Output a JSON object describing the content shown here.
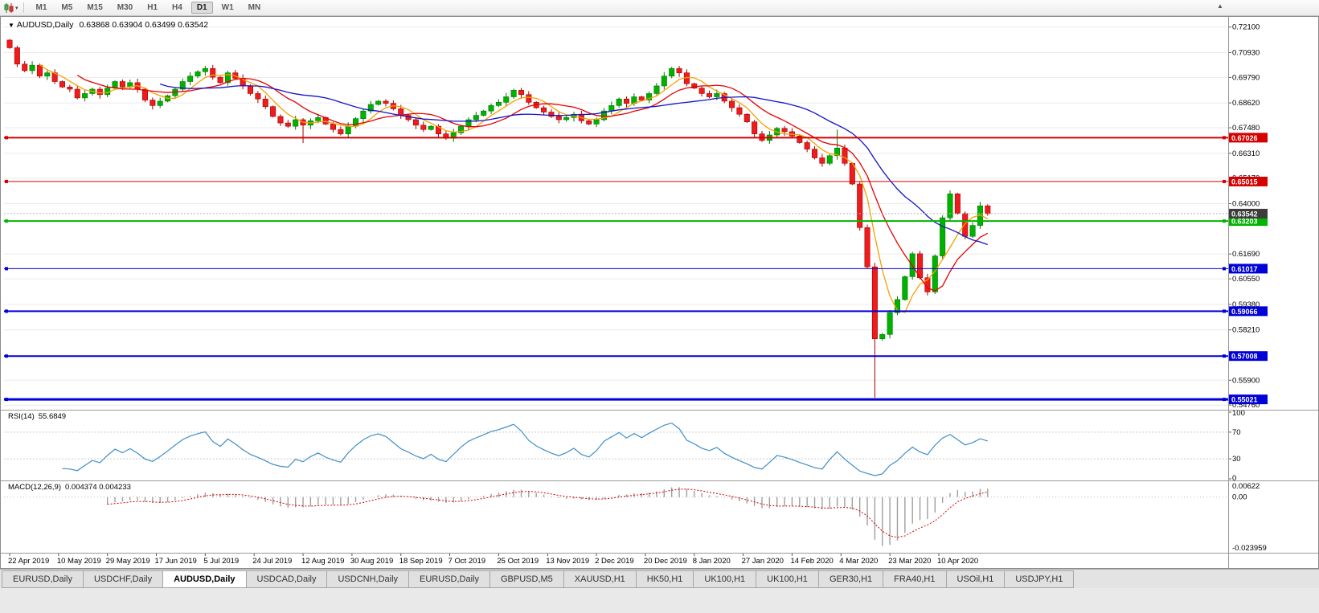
{
  "toolbar": {
    "timeframes": [
      "M1",
      "M5",
      "M15",
      "M30",
      "H1",
      "H4",
      "D1",
      "W1",
      "MN"
    ],
    "active_timeframe": "D1",
    "dropdown_glyph": "▾",
    "scroll_glyph": "▲"
  },
  "chart": {
    "dropdown_glyph": "▼",
    "title_symbol": "AUDUSD,Daily",
    "title_ohlc": "0.63868 0.63904 0.63499 0.63542",
    "current_price": "0.63542",
    "current_price_bg": "#3C3C3C",
    "price_axis_ticks": [
      "0.72100",
      "0.70930",
      "0.69790",
      "0.68620",
      "0.67480",
      "0.66310",
      "0.65170",
      "0.64000",
      "0.61690",
      "0.60550",
      "0.59380",
      "0.58210",
      "0.55900",
      "0.54760"
    ],
    "hlines": [
      {
        "price": 0.67026,
        "label": "0.67026",
        "color": "#D60000",
        "width": 2
      },
      {
        "price": 0.65015,
        "label": "0.65015",
        "color": "#D60000",
        "width": 1
      },
      {
        "price": 0.63203,
        "label": "0.63203",
        "color": "#00B400",
        "width": 2
      },
      {
        "price": 0.61017,
        "label": "0.61017",
        "color": "#0000D8",
        "width": 1
      },
      {
        "price": 0.59066,
        "label": "0.59066",
        "color": "#0000D8",
        "width": 2
      },
      {
        "price": 0.57008,
        "label": "0.57008",
        "color": "#0000D8",
        "width": 2
      },
      {
        "price": 0.55021,
        "label": "0.55021",
        "color": "#0000D8",
        "width": 3
      }
    ],
    "date_labels": [
      "22 Apr 2019",
      "10 May 2019",
      "29 May 2019",
      "17 Jun 2019",
      "5 Jul 2019",
      "24 Jul 2019",
      "12 Aug 2019",
      "30 Aug 2019",
      "18 Sep 2019",
      "7 Oct 2019",
      "25 Oct 2019",
      "13 Nov 2019",
      "2 Dec 2019",
      "20 Dec 2019",
      "8 Jan 2020",
      "27 Jan 2020",
      "14 Feb 2020",
      "4 Mar 2020",
      "23 Mar 2020",
      "10 Apr 2020"
    ]
  },
  "chart_data": {
    "type": "candlestick",
    "symbol": "AUDUSD",
    "period": "Daily",
    "last_ohlc": {
      "open": 0.63868,
      "high": 0.63904,
      "low": 0.63499,
      "close": 0.63542
    },
    "y_range": [
      0.5462,
      0.7253
    ],
    "first_open": 0.715,
    "closes": [
      0.7115,
      0.704,
      0.701,
      0.7035,
      0.6985,
      0.7,
      0.696,
      0.6935,
      0.6925,
      0.6885,
      0.6905,
      0.6925,
      0.69,
      0.693,
      0.696,
      0.6935,
      0.6955,
      0.6925,
      0.6875,
      0.685,
      0.687,
      0.6895,
      0.6925,
      0.696,
      0.6985,
      0.7005,
      0.702,
      0.698,
      0.6955,
      0.7,
      0.6975,
      0.694,
      0.6905,
      0.688,
      0.6845,
      0.68,
      0.677,
      0.6755,
      0.6785,
      0.676,
      0.678,
      0.6795,
      0.6765,
      0.674,
      0.672,
      0.6755,
      0.679,
      0.6825,
      0.6855,
      0.687,
      0.686,
      0.6835,
      0.6805,
      0.6785,
      0.676,
      0.674,
      0.6755,
      0.672,
      0.67,
      0.6725,
      0.6755,
      0.6785,
      0.6805,
      0.6825,
      0.685,
      0.6865,
      0.689,
      0.692,
      0.69,
      0.6865,
      0.684,
      0.682,
      0.68,
      0.6785,
      0.6795,
      0.681,
      0.678,
      0.6765,
      0.6785,
      0.6825,
      0.685,
      0.688,
      0.686,
      0.689,
      0.6875,
      0.6905,
      0.694,
      0.6985,
      0.702,
      0.7,
      0.695,
      0.693,
      0.6905,
      0.689,
      0.6905,
      0.687,
      0.684,
      0.681,
      0.6775,
      0.672,
      0.669,
      0.6715,
      0.6745,
      0.673,
      0.671,
      0.668,
      0.665,
      0.661,
      0.6585,
      0.662,
      0.6655,
      0.6585,
      0.649,
      0.629,
      0.611,
      0.578,
      0.58,
      0.59,
      0.596,
      0.6065,
      0.617,
      0.606,
      0.5995,
      0.616,
      0.6335,
      0.6445,
      0.6355,
      0.625,
      0.63,
      0.639,
      0.6354
    ],
    "wick_overrides": {
      "39": {
        "low": 0.6678
      },
      "110": {
        "high": 0.674
      },
      "115": {
        "low": 0.551
      }
    },
    "up_color": "#00B200",
    "up_border": "#007800",
    "down_color": "#EE1C1C",
    "down_border": "#A50000",
    "ma_lines": [
      {
        "period": 5,
        "color": "#F5A000",
        "label": "fast-ma"
      },
      {
        "period": 10,
        "color": "#E60000",
        "label": "medium-ma"
      },
      {
        "period": 21,
        "color": "#1414C8",
        "label": "slow-ma"
      }
    ]
  },
  "rsi": {
    "name": "RSI(14)",
    "value": "55.6849",
    "axis_labels": [
      "100",
      "70",
      "30",
      "0"
    ],
    "upper_level": 70,
    "lower_level": 30,
    "line_color": "#3E8EC9",
    "render_period": 7
  },
  "macd": {
    "name": "MACD(12,26,9)",
    "values": "0.004374 0.004233",
    "axis_top": "0.00622",
    "axis_zero": "0.00",
    "axis_bottom": "-0.023959",
    "bar_color": "#9E9E9E",
    "signal_color": "#D60000",
    "render_fast": 6,
    "render_slow": 13,
    "render_signal": 5
  },
  "tabs": {
    "items": [
      "EURUSD,Daily",
      "USDCHF,Daily",
      "AUDUSD,Daily",
      "USDCAD,Daily",
      "USDCNH,Daily",
      "EURUSD,Daily",
      "GBPUSD,M5",
      "XAUUSD,H1",
      "HK50,H1",
      "UK100,H1",
      "UK100,H1",
      "GER30,H1",
      "FRA40,H1",
      "USOil,H1",
      "USDJPY,H1"
    ],
    "active_index": 2
  }
}
